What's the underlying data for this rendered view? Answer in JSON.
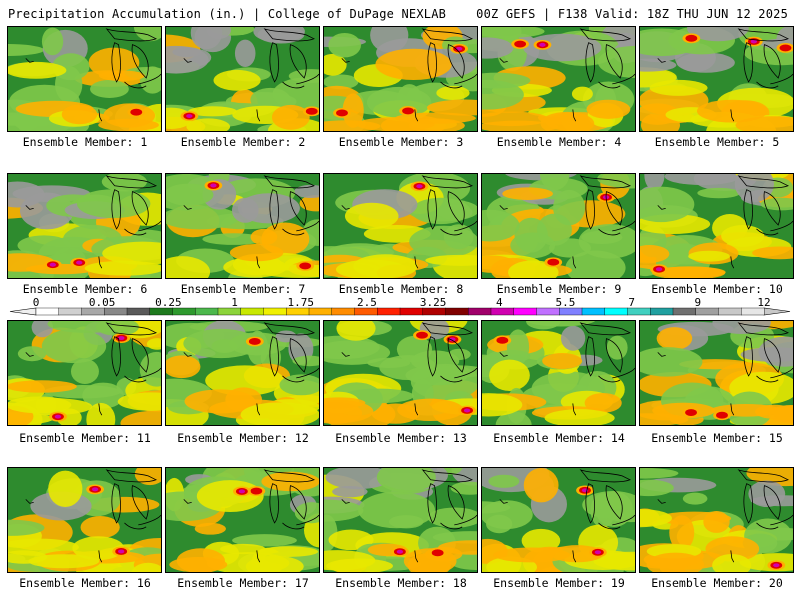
{
  "header": {
    "left": "Precipitation Accumulation (in.) | College of DuPage NEXLAB",
    "right": "00Z GEFS | F138 Valid: 18Z THU JUN 12 2025"
  },
  "panels": [
    {
      "label": "Ensemble Member: 1"
    },
    {
      "label": "Ensemble Member: 2"
    },
    {
      "label": "Ensemble Member: 3"
    },
    {
      "label": "Ensemble Member: 4"
    },
    {
      "label": "Ensemble Member: 5"
    },
    {
      "label": "Ensemble Member: 6"
    },
    {
      "label": "Ensemble Member: 7"
    },
    {
      "label": "Ensemble Member: 8"
    },
    {
      "label": "Ensemble Member: 9"
    },
    {
      "label": "Ensemble Member: 10"
    },
    {
      "label": "Ensemble Member: 11"
    },
    {
      "label": "Ensemble Member: 12"
    },
    {
      "label": "Ensemble Member: 13"
    },
    {
      "label": "Ensemble Member: 14"
    },
    {
      "label": "Ensemble Member: 15"
    },
    {
      "label": "Ensemble Member: 16"
    },
    {
      "label": "Ensemble Member: 17"
    },
    {
      "label": "Ensemble Member: 18"
    },
    {
      "label": "Ensemble Member: 19"
    },
    {
      "label": "Ensemble Member: 20"
    }
  ],
  "colorbar": {
    "tick_labels": [
      "0",
      "0.05",
      "0.25",
      "1",
      "1.75",
      "2.5",
      "3.25",
      "4",
      "5.5",
      "7",
      "9",
      "12"
    ],
    "colors": [
      "#ffffff",
      "#d0d0d0",
      "#a8a8a8",
      "#888888",
      "#5a5a5a",
      "#1e7a1e",
      "#2e9a2e",
      "#4cb84c",
      "#8cd43a",
      "#c8e800",
      "#f0f000",
      "#ffd000",
      "#ffb000",
      "#ff8c00",
      "#ff5a00",
      "#ff2000",
      "#e00000",
      "#b00000",
      "#800000",
      "#a0006a",
      "#d000b0",
      "#ff00ff",
      "#c070ff",
      "#8080ff",
      "#00c0ff",
      "#00ffff",
      "#40d0c0",
      "#20a0a0",
      "#707070",
      "#a0a0a0",
      "#c8c8c8",
      "#e6e6e6"
    ]
  },
  "colors": {
    "base_green": "#2e8b2e",
    "light_green": "#7fc84a",
    "yellow": "#e8e800",
    "orange": "#ffb000",
    "red": "#e00000",
    "magenta": "#d000b0",
    "gray": "#9a9a9a",
    "cyan": "#00c0ff"
  }
}
